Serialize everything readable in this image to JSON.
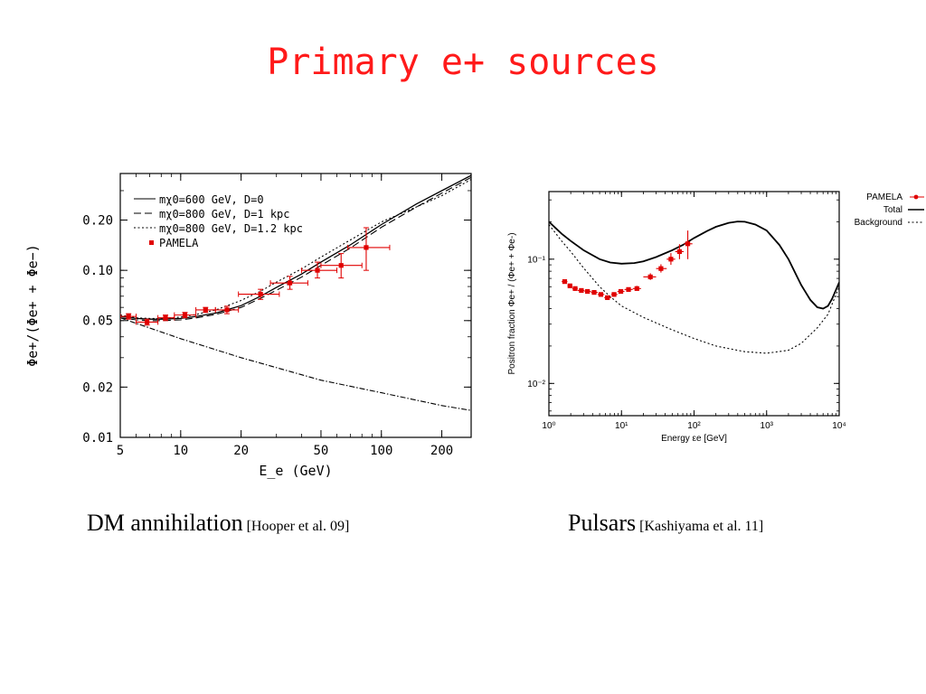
{
  "slide": {
    "title": "Primary e+ sources",
    "captions": [
      {
        "main": "DM annihilation",
        "ref": "[Hooper et al. 09]"
      },
      {
        "main": "Pulsars",
        "ref": "[Kashiyama et al. 11]"
      }
    ]
  },
  "chart_data": [
    {
      "type": "line",
      "xlabel": "E_e (GeV)",
      "ylabel": "Φe+/(Φe+ + Φe−)",
      "x_scale": "log",
      "y_scale": "log",
      "xlim": [
        5,
        280
      ],
      "ylim": [
        0.01,
        0.38
      ],
      "x_ticks": [
        5,
        10,
        20,
        50,
        100,
        200
      ],
      "x_tick_labels": [
        "5",
        "10",
        "20",
        "50",
        "100",
        "200"
      ],
      "y_ticks": [
        0.01,
        0.02,
        0.05,
        0.1,
        0.2
      ],
      "y_tick_labels": [
        "0.01",
        "0.02",
        "0.05",
        "0.10",
        "0.20"
      ],
      "legend_position": "top-left",
      "legend": [
        {
          "label": "mχ0=600 GeV, D=0",
          "style": "solid"
        },
        {
          "label": "mχ0=800 GeV, D=1 kpc",
          "style": "dashed"
        },
        {
          "label": "mχ0=800 GeV, D=1.2 kpc",
          "style": "dotted"
        },
        {
          "label": "PAMELA",
          "style": "marker"
        }
      ],
      "series": [
        {
          "style": "solid",
          "x": [
            5,
            6,
            7,
            8,
            10,
            12,
            15,
            20,
            25,
            30,
            40,
            50,
            70,
            100,
            150,
            200,
            280
          ],
          "y": [
            0.053,
            0.0515,
            0.051,
            0.051,
            0.0515,
            0.053,
            0.0555,
            0.0615,
            0.07,
            0.079,
            0.095,
            0.112,
            0.142,
            0.188,
            0.25,
            0.3,
            0.37
          ]
        },
        {
          "style": "dashed",
          "x": [
            5,
            6,
            7,
            8,
            10,
            12,
            15,
            20,
            25,
            30,
            40,
            50,
            70,
            100,
            150,
            200,
            280
          ],
          "y": [
            0.052,
            0.0505,
            0.05,
            0.05,
            0.0505,
            0.052,
            0.0545,
            0.06,
            0.068,
            0.076,
            0.091,
            0.107,
            0.136,
            0.181,
            0.24,
            0.29,
            0.36
          ]
        },
        {
          "style": "dotted",
          "x": [
            5,
            6,
            7,
            8,
            10,
            12,
            15,
            20,
            25,
            30,
            40,
            50,
            70,
            100,
            150,
            200,
            280
          ],
          "y": [
            0.054,
            0.052,
            0.0515,
            0.0515,
            0.0525,
            0.0545,
            0.058,
            0.066,
            0.075,
            0.085,
            0.102,
            0.12,
            0.152,
            0.195,
            0.24,
            0.28,
            0.35
          ]
        },
        {
          "style": "dashdot",
          "x": [
            5,
            10,
            20,
            50,
            100,
            200,
            280
          ],
          "y": [
            0.052,
            0.039,
            0.03,
            0.022,
            0.0185,
            0.0155,
            0.0145
          ]
        }
      ],
      "pamela": [
        {
          "x": 5.5,
          "y": 0.053,
          "xerr": [
            5.0,
            6.0
          ],
          "yerr": [
            0.051,
            0.055
          ]
        },
        {
          "x": 6.8,
          "y": 0.049,
          "xerr": [
            6.0,
            7.7
          ],
          "yerr": [
            0.047,
            0.051
          ]
        },
        {
          "x": 8.4,
          "y": 0.052,
          "xerr": [
            7.7,
            9.3
          ],
          "yerr": [
            0.05,
            0.054
          ]
        },
        {
          "x": 10.5,
          "y": 0.054,
          "xerr": [
            9.3,
            11.9
          ],
          "yerr": [
            0.052,
            0.056
          ]
        },
        {
          "x": 13.3,
          "y": 0.058,
          "xerr": [
            11.9,
            14.9
          ],
          "yerr": [
            0.056,
            0.06
          ]
        },
        {
          "x": 17.0,
          "y": 0.058,
          "xerr": [
            14.9,
            19.4
          ],
          "yerr": [
            0.055,
            0.061
          ]
        },
        {
          "x": 25.0,
          "y": 0.072,
          "xerr": [
            19.4,
            31.0
          ],
          "yerr": [
            0.067,
            0.077
          ]
        },
        {
          "x": 35.0,
          "y": 0.084,
          "xerr": [
            28.0,
            43.0
          ],
          "yerr": [
            0.077,
            0.092
          ]
        },
        {
          "x": 48.0,
          "y": 0.1,
          "xerr": [
            40.0,
            60.0
          ],
          "yerr": [
            0.09,
            0.112
          ]
        },
        {
          "x": 63.0,
          "y": 0.107,
          "xerr": [
            50.0,
            80.0
          ],
          "yerr": [
            0.09,
            0.126
          ]
        },
        {
          "x": 84.0,
          "y": 0.137,
          "xerr": [
            68.0,
            110.0
          ],
          "yerr": [
            0.1,
            0.18
          ]
        }
      ]
    },
    {
      "type": "line",
      "xlabel": "Energy εe [GeV]",
      "ylabel": "Positron fraction Φe+ / (Φe+ + Φe-)",
      "x_scale": "log",
      "y_scale": "log",
      "xlim": [
        1,
        10000
      ],
      "ylim": [
        0.0055,
        0.35
      ],
      "x_ticks": [
        1,
        10,
        100,
        1000,
        10000
      ],
      "x_tick_labels": [
        "10⁰",
        "10¹",
        "10²",
        "10³",
        "10⁴"
      ],
      "y_ticks": [
        0.01,
        0.1
      ],
      "y_tick_labels": [
        "10⁻²",
        "10⁻¹"
      ],
      "legend_position": "outside-right",
      "legend": [
        {
          "label": "PAMELA",
          "style": "marker"
        },
        {
          "label": "Total",
          "style": "solid"
        },
        {
          "label": "Background",
          "style": "dotted"
        }
      ],
      "series": [
        {
          "name": "Total",
          "style": "solid",
          "x": [
            1,
            1.5,
            2,
            3,
            5,
            7,
            10,
            15,
            20,
            30,
            50,
            70,
            100,
            150,
            200,
            300,
            400,
            500,
            700,
            1000,
            1500,
            2000,
            3000,
            4000,
            5000,
            6000,
            7000,
            8000,
            10000
          ],
          "y": [
            0.2,
            0.16,
            0.14,
            0.118,
            0.1,
            0.094,
            0.092,
            0.093,
            0.096,
            0.104,
            0.118,
            0.13,
            0.148,
            0.168,
            0.182,
            0.196,
            0.201,
            0.2,
            0.19,
            0.17,
            0.13,
            0.1,
            0.062,
            0.047,
            0.041,
            0.04,
            0.042,
            0.048,
            0.065
          ]
        },
        {
          "name": "Background",
          "style": "dotted",
          "x": [
            1,
            1.5,
            2,
            3,
            5,
            7,
            10,
            20,
            50,
            100,
            200,
            500,
            1000,
            2000,
            3000,
            5000,
            7000,
            10000
          ],
          "y": [
            0.19,
            0.14,
            0.115,
            0.085,
            0.06,
            0.05,
            0.042,
            0.034,
            0.027,
            0.023,
            0.02,
            0.018,
            0.0175,
            0.0185,
            0.021,
            0.028,
            0.036,
            0.06
          ]
        }
      ],
      "pamela": [
        {
          "x": 1.65,
          "y": 0.066,
          "xerr": [
            1.5,
            1.8
          ],
          "yerr": [
            0.064,
            0.068
          ]
        },
        {
          "x": 1.95,
          "y": 0.061,
          "xerr": [
            1.8,
            2.1
          ],
          "yerr": [
            0.059,
            0.063
          ]
        },
        {
          "x": 2.3,
          "y": 0.058,
          "xerr": [
            2.1,
            2.5
          ],
          "yerr": [
            0.056,
            0.06
          ]
        },
        {
          "x": 2.8,
          "y": 0.056,
          "xerr": [
            2.5,
            3.1
          ],
          "yerr": [
            0.054,
            0.058
          ]
        },
        {
          "x": 3.4,
          "y": 0.055,
          "xerr": [
            3.1,
            3.8
          ],
          "yerr": [
            0.053,
            0.057
          ]
        },
        {
          "x": 4.2,
          "y": 0.054,
          "xerr": [
            3.8,
            4.7
          ],
          "yerr": [
            0.052,
            0.056
          ]
        },
        {
          "x": 5.2,
          "y": 0.052,
          "xerr": [
            4.7,
            5.8
          ],
          "yerr": [
            0.05,
            0.054
          ]
        },
        {
          "x": 6.4,
          "y": 0.049,
          "xerr": [
            5.8,
            7.2
          ],
          "yerr": [
            0.047,
            0.051
          ]
        },
        {
          "x": 7.9,
          "y": 0.052,
          "xerr": [
            7.2,
            8.8
          ],
          "yerr": [
            0.05,
            0.054
          ]
        },
        {
          "x": 9.8,
          "y": 0.055,
          "xerr": [
            8.8,
            11.0
          ],
          "yerr": [
            0.053,
            0.057
          ]
        },
        {
          "x": 12.5,
          "y": 0.057,
          "xerr": [
            11.0,
            14.3
          ],
          "yerr": [
            0.055,
            0.059
          ]
        },
        {
          "x": 16.3,
          "y": 0.058,
          "xerr": [
            14.3,
            18.6
          ],
          "yerr": [
            0.056,
            0.061
          ]
        },
        {
          "x": 25.0,
          "y": 0.072,
          "xerr": [
            20.0,
            30.0
          ],
          "yerr": [
            0.068,
            0.077
          ]
        },
        {
          "x": 35.0,
          "y": 0.084,
          "xerr": [
            30.0,
            42.0
          ],
          "yerr": [
            0.078,
            0.091
          ]
        },
        {
          "x": 48.0,
          "y": 0.1,
          "xerr": [
            42.0,
            55.0
          ],
          "yerr": [
            0.09,
            0.112
          ]
        },
        {
          "x": 63.0,
          "y": 0.115,
          "xerr": [
            55.0,
            72.0
          ],
          "yerr": [
            0.1,
            0.132
          ]
        },
        {
          "x": 82.0,
          "y": 0.133,
          "xerr": [
            72.0,
            95.0
          ],
          "yerr": [
            0.1,
            0.17
          ]
        }
      ]
    }
  ]
}
